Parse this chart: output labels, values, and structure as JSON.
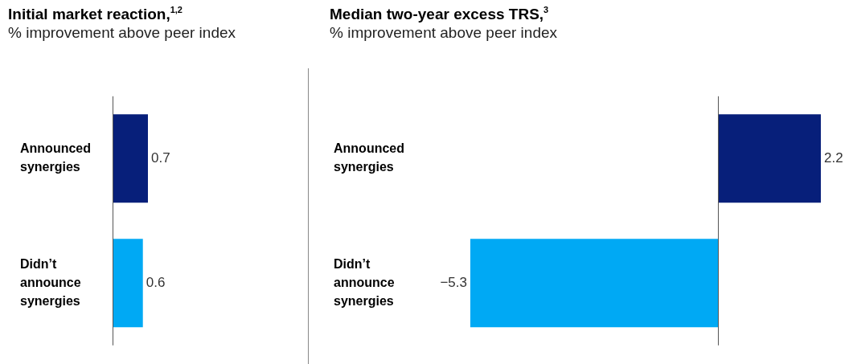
{
  "chart_data": [
    {
      "type": "bar",
      "orientation": "horizontal",
      "title": "Initial market reaction,$^{1,2}$",
      "subtitle": "% improvement above peer index",
      "categories": [
        "Announced synergies",
        "Didn’t announce synergies"
      ],
      "values": [
        0.7,
        0.6
      ],
      "colors": [
        "#071f7a",
        "#00a9f4"
      ],
      "data_labels": true,
      "legend": false,
      "tick_labels": "y"
    },
    {
      "type": "bar",
      "orientation": "horizontal",
      "title": "Median two-year excess TRS,$^{3}$",
      "subtitle": "% improvement above peer index",
      "categories": [
        "Announced synergies",
        "Didn’t announce synergies"
      ],
      "values": [
        2.2,
        -5.3
      ],
      "colors": [
        "#071f7a",
        "#00a9f4"
      ],
      "data_labels": true,
      "legend": false,
      "tick_labels": "y"
    }
  ]
}
